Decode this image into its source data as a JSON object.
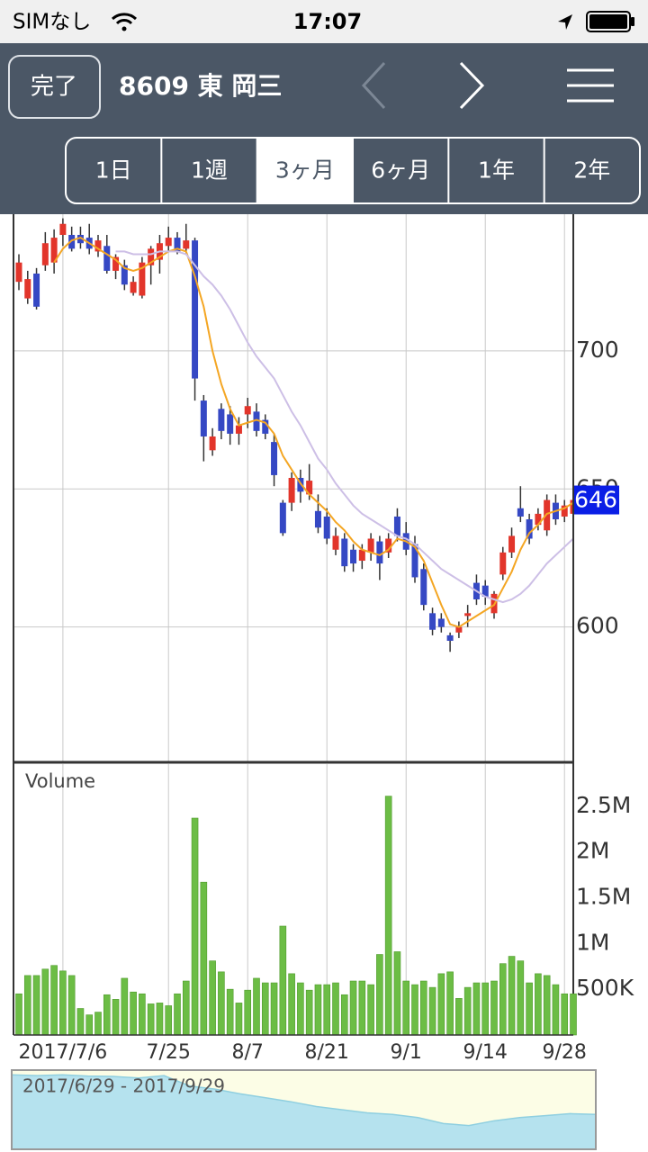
{
  "status_bar": {
    "carrier": "SIMなし",
    "time": "17:07"
  },
  "nav": {
    "done": "完了",
    "title": "8609 東 岡三"
  },
  "tabs": {
    "items": [
      "1日",
      "1週",
      "3ヶ月",
      "6ヶ月",
      "1年",
      "2年"
    ],
    "selected": 2
  },
  "chart_data": [
    {
      "type": "candlestick",
      "categories": [
        null,
        null,
        null,
        null,
        null,
        "2017/7/6",
        null,
        null,
        null,
        null,
        null,
        null,
        null,
        null,
        null,
        null,
        null,
        "7/25",
        null,
        null,
        null,
        null,
        null,
        null,
        null,
        null,
        "8/7",
        null,
        null,
        null,
        null,
        null,
        null,
        null,
        null,
        "8/21",
        null,
        null,
        null,
        null,
        null,
        null,
        null,
        null,
        "9/1",
        null,
        null,
        null,
        null,
        null,
        null,
        null,
        null,
        "9/14",
        null,
        null,
        null,
        null,
        null,
        null,
        null,
        null,
        "9/28",
        null
      ],
      "open": [
        725,
        719,
        728,
        731,
        732,
        742,
        742,
        742,
        741,
        736,
        738,
        729,
        731,
        721,
        720,
        731,
        733,
        738,
        741,
        737,
        740,
        682,
        664,
        679,
        677,
        670,
        677,
        678,
        675,
        667,
        645,
        645,
        654,
        648,
        642,
        640,
        628,
        632,
        628,
        624,
        627,
        631,
        627,
        640,
        634,
        630,
        621,
        605,
        603,
        597,
        598,
        604,
        616,
        615,
        605,
        619,
        627,
        643,
        639,
        637,
        635,
        645,
        640,
        641
      ],
      "high": [
        735,
        729,
        730,
        743,
        744,
        748,
        745,
        745,
        746,
        742,
        742,
        735,
        733,
        727,
        734,
        738,
        742,
        745,
        743,
        746,
        741,
        684,
        672,
        681,
        680,
        676,
        683,
        681,
        677,
        670,
        646,
        656,
        657,
        659,
        648,
        643,
        636,
        634,
        630,
        630,
        634,
        633,
        634,
        643,
        638,
        633,
        623,
        607,
        605,
        598,
        602,
        608,
        619,
        617,
        613,
        629,
        636,
        651,
        641,
        643,
        648,
        648,
        646,
        648
      ],
      "low": [
        722,
        717,
        715,
        729,
        728,
        738,
        736,
        737,
        735,
        734,
        728,
        726,
        722,
        720,
        719,
        724,
        728,
        736,
        735,
        735,
        682,
        660,
        662,
        668,
        666,
        666,
        672,
        669,
        668,
        651,
        633,
        642,
        645,
        646,
        634,
        630,
        626,
        620,
        620,
        621,
        624,
        617,
        625,
        631,
        626,
        616,
        606,
        597,
        598,
        591,
        596,
        600,
        608,
        608,
        603,
        617,
        625,
        638,
        630,
        635,
        633,
        637,
        638,
        639
      ],
      "close": [
        732,
        726,
        716,
        739,
        741,
        746,
        737,
        739,
        737,
        740,
        729,
        734,
        724,
        725,
        732,
        737,
        739,
        741,
        736,
        740,
        690,
        669,
        669,
        671,
        670,
        673,
        680,
        671,
        670,
        655,
        634,
        654,
        649,
        653,
        636,
        632,
        633,
        622,
        623,
        628,
        632,
        623,
        632,
        633,
        628,
        618,
        608,
        599,
        600,
        595,
        600,
        605,
        610,
        611,
        612,
        627,
        633,
        640,
        632,
        641,
        646,
        639,
        644,
        646
      ],
      "up_color": "#e2352b",
      "down_color": "#3548c4",
      "series": [
        {
          "color": "#f4a623",
          "values": [
            null,
            null,
            null,
            null,
            732,
            737,
            740,
            741,
            739,
            737,
            735,
            733,
            730,
            729,
            730,
            732,
            734,
            736,
            737,
            736,
            727,
            716,
            700,
            688,
            679,
            673,
            674,
            675,
            674,
            670,
            662,
            657,
            652,
            648,
            645,
            642,
            638,
            635,
            631,
            628,
            627,
            626,
            628,
            632,
            631,
            629,
            624,
            616,
            608,
            601,
            600,
            602,
            604,
            606,
            608,
            614,
            620,
            628,
            634,
            637,
            641,
            642,
            643,
            645
          ]
        },
        {
          "color": "#cdbfe6",
          "values": [
            null,
            null,
            null,
            null,
            null,
            null,
            null,
            null,
            null,
            null,
            null,
            736,
            736,
            735,
            735,
            735,
            736,
            736,
            736,
            735,
            731,
            727,
            724,
            720,
            715,
            709,
            703,
            698,
            694,
            690,
            684,
            678,
            673,
            667,
            661,
            657,
            652,
            648,
            644,
            641,
            639,
            637,
            635,
            633,
            632,
            630,
            627,
            624,
            621,
            619,
            617,
            615,
            613,
            611,
            610,
            609,
            610,
            612,
            615,
            619,
            623,
            626,
            629,
            632
          ]
        }
      ],
      "ylim": [
        551,
        749.5
      ],
      "yticks": [
        600,
        650,
        700
      ],
      "grid": true,
      "last_value": 646
    },
    {
      "type": "bar",
      "title": "Volume",
      "color": "#6cbd45",
      "values": [
        450000,
        650000,
        650000,
        720000,
        760000,
        700000,
        650000,
        290000,
        220000,
        250000,
        440000,
        390000,
        620000,
        470000,
        450000,
        340000,
        350000,
        320000,
        450000,
        590000,
        2370000,
        1670000,
        810000,
        690000,
        500000,
        350000,
        490000,
        620000,
        570000,
        570000,
        1190000,
        670000,
        570000,
        490000,
        550000,
        550000,
        570000,
        440000,
        590000,
        590000,
        550000,
        880000,
        2610000,
        910000,
        590000,
        550000,
        590000,
        520000,
        670000,
        690000,
        400000,
        520000,
        570000,
        570000,
        590000,
        780000,
        860000,
        810000,
        570000,
        670000,
        650000,
        550000,
        450000,
        450000
      ],
      "ylim": [
        0,
        2960000
      ],
      "yticks": [
        {
          "value": 500000,
          "label": "500K"
        },
        {
          "value": 1000000,
          "label": "1M"
        },
        {
          "value": 1500000,
          "label": "1.5M"
        },
        {
          "value": 2000000,
          "label": "2M"
        },
        {
          "value": 2500000,
          "label": "2.5M"
        }
      ]
    },
    {
      "type": "area",
      "title": "2017/6/29 - 2017/9/29",
      "color": "#b5e2ee",
      "values": [
        748,
        746,
        748,
        745,
        744,
        740,
        746,
        720,
        712,
        700,
        690,
        680,
        668,
        660,
        652,
        648,
        640,
        625,
        620,
        632,
        640,
        645,
        650,
        648
      ],
      "ylim": [
        560,
        760
      ]
    }
  ]
}
